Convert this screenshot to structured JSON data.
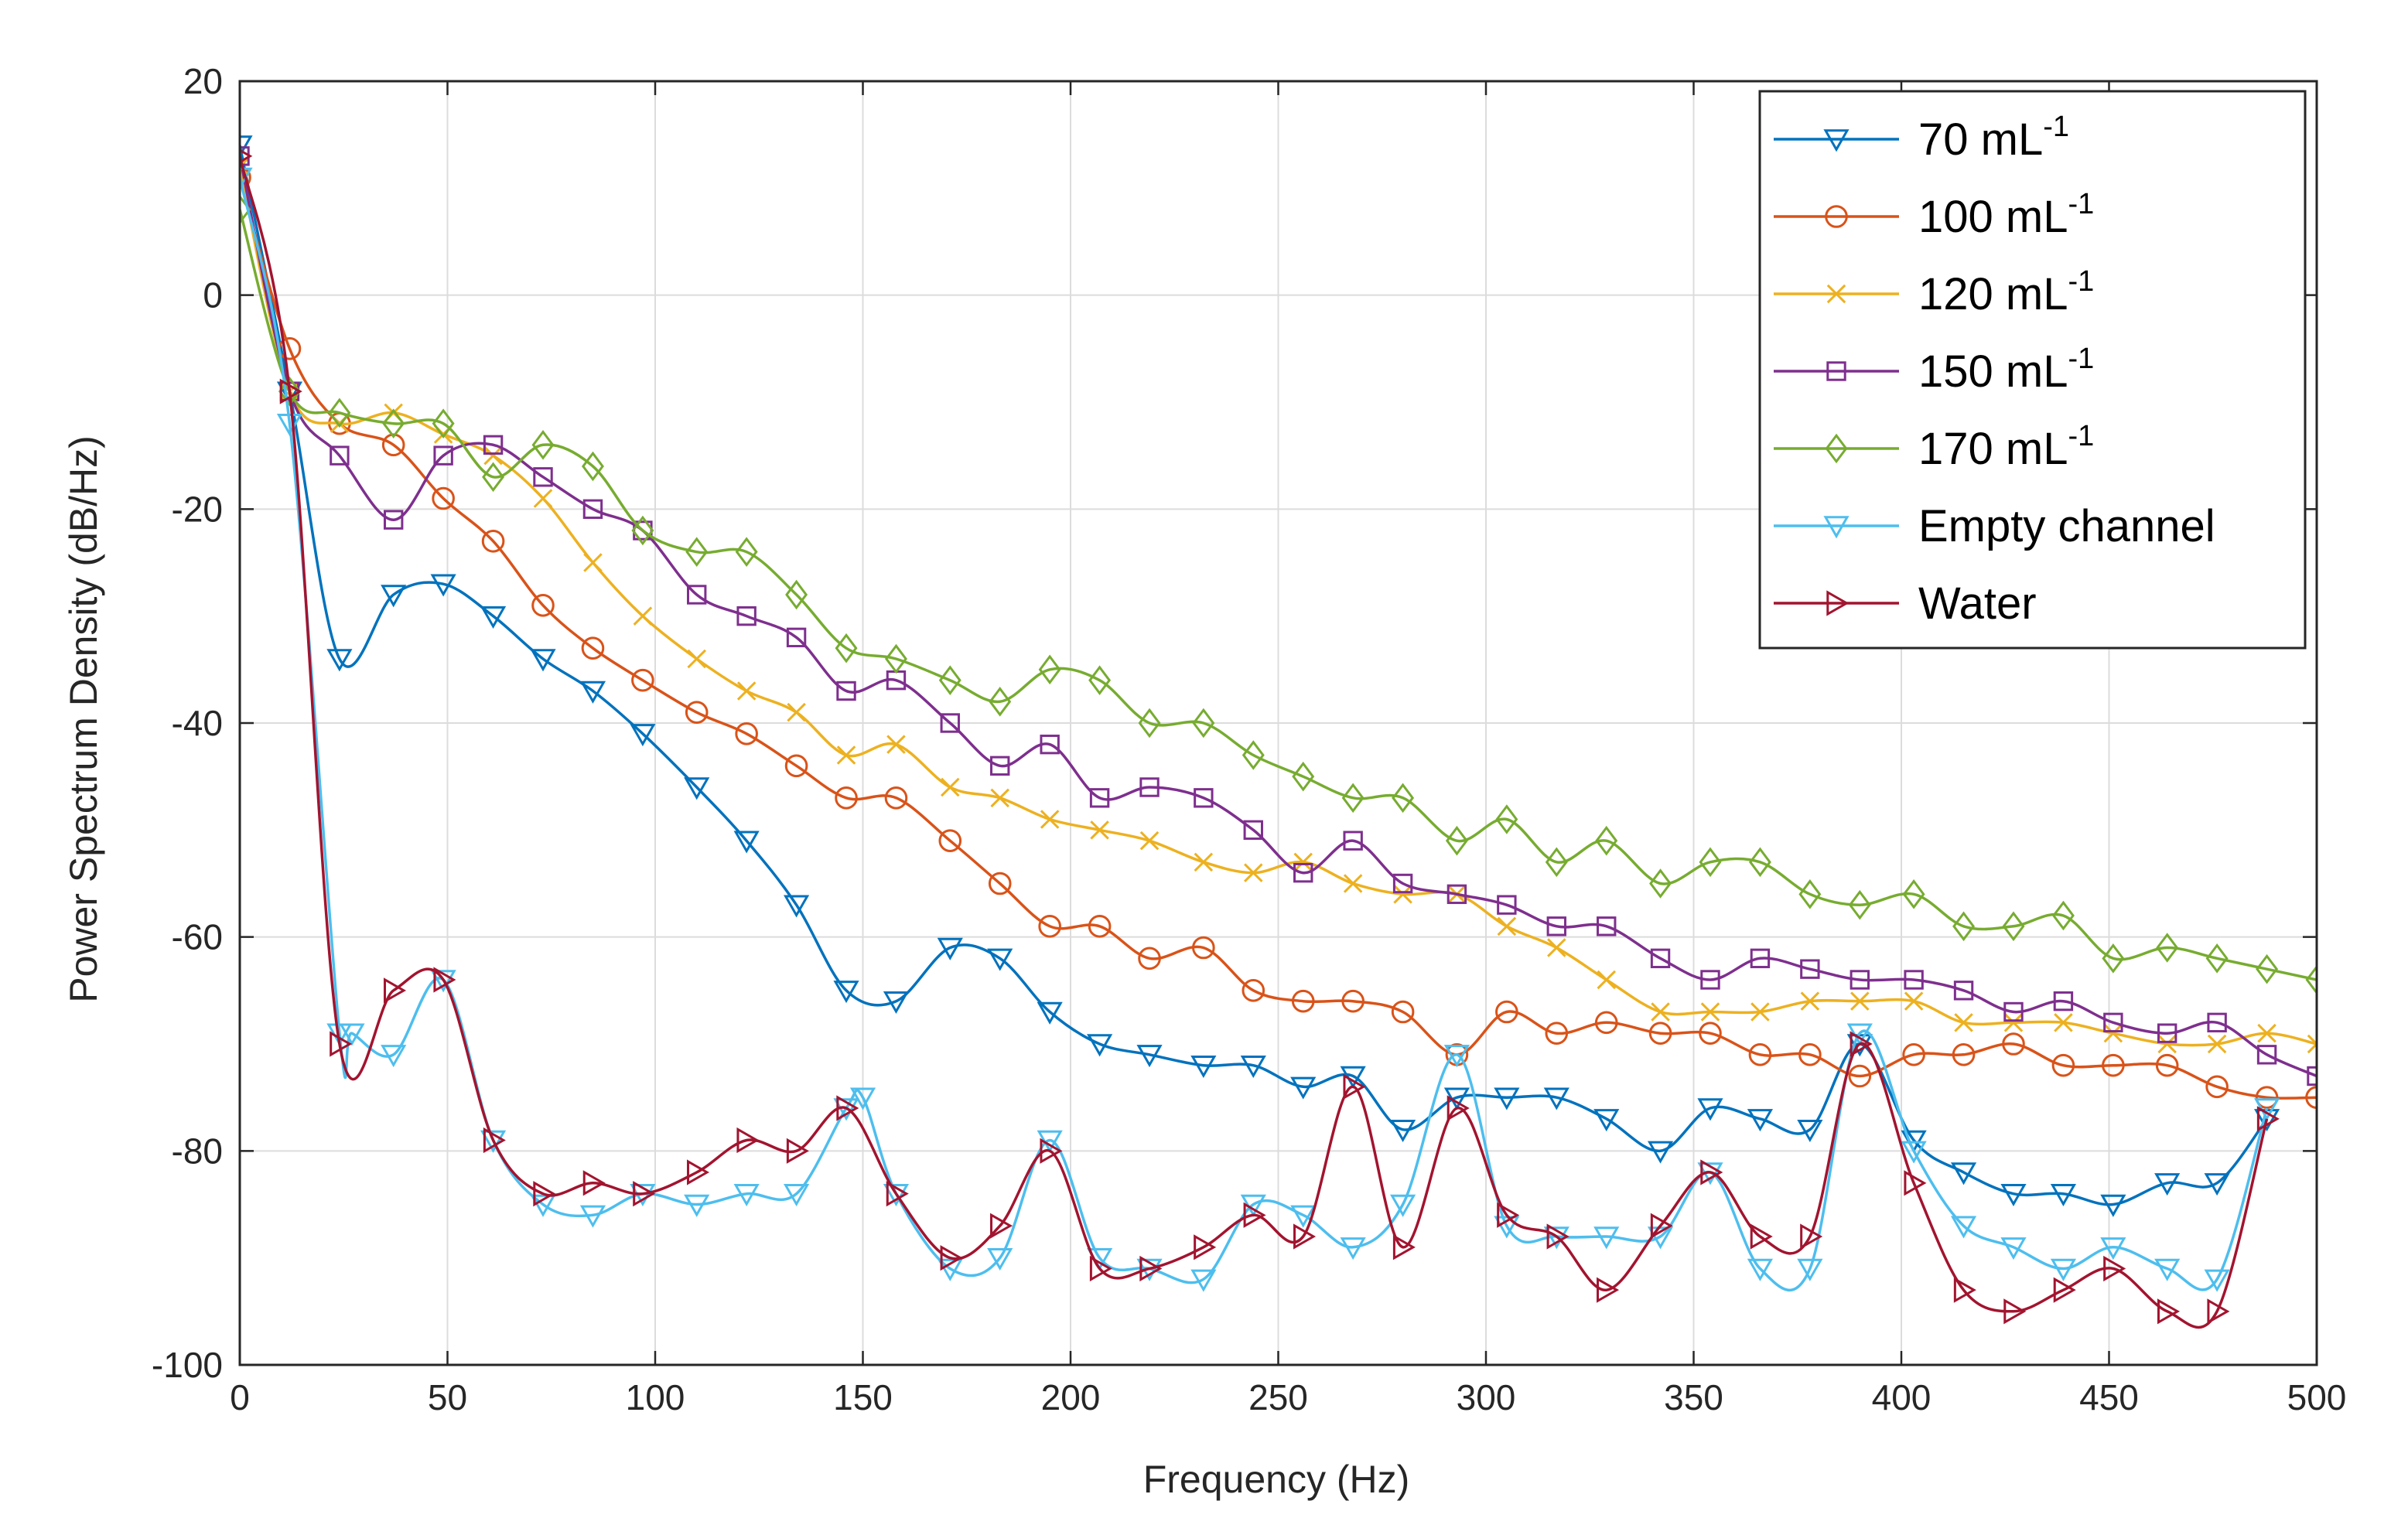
{
  "chart_data": {
    "type": "line",
    "xlabel": "Frequency (Hz)",
    "ylabel": "Power Spectrum Density (dB/Hz)",
    "xlim": [
      0,
      500
    ],
    "ylim": [
      -100,
      20
    ],
    "x_ticks": [
      "0",
      "50",
      "100",
      "150",
      "200",
      "250",
      "300",
      "350",
      "400",
      "450",
      "500"
    ],
    "y_ticks": [
      "20",
      "0",
      "-20",
      "-40",
      "-60",
      "-80",
      "-100"
    ],
    "grid": true,
    "legend_position": "top-right",
    "series": [
      {
        "name": "70 mL",
        "name_superscript": "-1",
        "color": "#0072BD",
        "marker": "triangle-down",
        "x": [
          0,
          12,
          24,
          37,
          49,
          61,
          73,
          85,
          97,
          110,
          122,
          134,
          146,
          158,
          171,
          183,
          195,
          207,
          219,
          232,
          244,
          256,
          268,
          280,
          293,
          305,
          317,
          329,
          342,
          354,
          366,
          378,
          390,
          403,
          415,
          427,
          439,
          451,
          464,
          476,
          488
        ],
        "y": [
          14,
          -9,
          -34,
          -28,
          -27,
          -30,
          -34,
          -37,
          -41,
          -46,
          -51,
          -57,
          -65,
          -66,
          -61,
          -62,
          -67,
          -70,
          -71,
          -72,
          -72,
          -74,
          -73,
          -78,
          -75,
          -75,
          -75,
          -77,
          -80,
          -76,
          -77,
          -78,
          -70,
          -79,
          -82,
          -84,
          -84,
          -85,
          -83,
          -83,
          -77
        ]
      },
      {
        "name": "100 mL",
        "name_superscript": "-1",
        "color": "#D95319",
        "marker": "circle",
        "x": [
          0,
          12,
          24,
          37,
          49,
          61,
          73,
          85,
          97,
          110,
          122,
          134,
          146,
          158,
          171,
          183,
          195,
          207,
          219,
          232,
          244,
          256,
          268,
          280,
          293,
          305,
          317,
          329,
          342,
          354,
          366,
          378,
          390,
          403,
          415,
          427,
          439,
          451,
          464,
          476,
          488,
          500
        ],
        "y": [
          11,
          -5,
          -12,
          -14,
          -19,
          -23,
          -29,
          -33,
          -36,
          -39,
          -41,
          -44,
          -47,
          -47,
          -51,
          -55,
          -59,
          -59,
          -62,
          -61,
          -65,
          -66,
          -66,
          -67,
          -71,
          -67,
          -69,
          -68,
          -69,
          -69,
          -71,
          -71,
          -73,
          -71,
          -71,
          -70,
          -72,
          -72,
          -72,
          -74,
          -75,
          -75
        ]
      },
      {
        "name": "120 mL",
        "name_superscript": "-1",
        "color": "#EDB120",
        "marker": "x",
        "x": [
          0,
          12,
          24,
          37,
          49,
          61,
          73,
          85,
          97,
          110,
          122,
          134,
          146,
          158,
          171,
          183,
          195,
          207,
          219,
          232,
          244,
          256,
          268,
          280,
          293,
          305,
          317,
          329,
          342,
          354,
          366,
          378,
          390,
          403,
          415,
          427,
          439,
          451,
          464,
          476,
          488,
          500
        ],
        "y": [
          12,
          -9,
          -12,
          -11,
          -13,
          -15,
          -19,
          -25,
          -30,
          -34,
          -37,
          -39,
          -43,
          -42,
          -46,
          -47,
          -49,
          -50,
          -51,
          -53,
          -54,
          -53,
          -55,
          -56,
          -56,
          -59,
          -61,
          -64,
          -67,
          -67,
          -67,
          -66,
          -66,
          -66,
          -68,
          -68,
          -68,
          -69,
          -70,
          -70,
          -69,
          -70
        ]
      },
      {
        "name": "150 mL",
        "name_superscript": "-1",
        "color": "#7E2F8E",
        "marker": "square",
        "x": [
          0,
          12,
          24,
          37,
          49,
          61,
          73,
          85,
          97,
          110,
          122,
          134,
          146,
          158,
          171,
          183,
          195,
          207,
          219,
          232,
          244,
          256,
          268,
          280,
          293,
          305,
          317,
          329,
          342,
          354,
          366,
          378,
          390,
          403,
          415,
          427,
          439,
          451,
          464,
          476,
          488,
          500
        ],
        "y": [
          13,
          -9,
          -15,
          -21,
          -15,
          -14,
          -17,
          -20,
          -22,
          -28,
          -30,
          -32,
          -37,
          -36,
          -40,
          -44,
          -42,
          -47,
          -46,
          -47,
          -50,
          -54,
          -51,
          -55,
          -56,
          -57,
          -59,
          -59,
          -62,
          -64,
          -62,
          -63,
          -64,
          -64,
          -65,
          -67,
          -66,
          -68,
          -69,
          -68,
          -71,
          -73
        ]
      },
      {
        "name": "170 mL",
        "name_superscript": "-1",
        "color": "#77AC30",
        "marker": "diamond",
        "x": [
          0,
          12,
          24,
          37,
          49,
          61,
          73,
          85,
          97,
          110,
          122,
          134,
          146,
          158,
          171,
          183,
          195,
          207,
          219,
          232,
          244,
          256,
          268,
          280,
          293,
          305,
          317,
          329,
          342,
          354,
          366,
          378,
          390,
          403,
          415,
          427,
          439,
          451,
          464,
          476,
          488,
          500
        ],
        "y": [
          8,
          -9,
          -11,
          -12,
          -12,
          -17,
          -14,
          -16,
          -22,
          -24,
          -24,
          -28,
          -33,
          -34,
          -36,
          -38,
          -35,
          -36,
          -40,
          -40,
          -43,
          -45,
          -47,
          -47,
          -51,
          -49,
          -53,
          -51,
          -55,
          -53,
          -53,
          -56,
          -57,
          -56,
          -59,
          -59,
          -58,
          -62,
          -61,
          -62,
          -63,
          -64
        ]
      },
      {
        "name": "Empty channel",
        "name_superscript": "",
        "color": "#4DBEEE",
        "marker": "triangle-down",
        "x": [
          0,
          12,
          24,
          27,
          37,
          49,
          61,
          73,
          85,
          97,
          110,
          122,
          134,
          146,
          150,
          158,
          171,
          183,
          195,
          207,
          219,
          232,
          244,
          256,
          268,
          280,
          293,
          305,
          317,
          329,
          342,
          354,
          366,
          378,
          390,
          403,
          415,
          427,
          439,
          451,
          464,
          476,
          488
        ],
        "y": [
          11,
          -12,
          -69,
          -69,
          -71,
          -64,
          -79,
          -85,
          -86,
          -84,
          -85,
          -84,
          -84,
          -76,
          -75,
          -84,
          -91,
          -90,
          -79,
          -90,
          -91,
          -92,
          -85,
          -86,
          -89,
          -85,
          -71,
          -87,
          -88,
          -88,
          -88,
          -82,
          -91,
          -91,
          -69,
          -80,
          -87,
          -89,
          -91,
          -89,
          -91,
          -92,
          -76
        ]
      },
      {
        "name": "Water",
        "name_superscript": "",
        "color": "#A2142F",
        "marker": "triangle-right",
        "x": [
          0,
          12,
          24,
          37,
          49,
          61,
          73,
          85,
          97,
          110,
          122,
          134,
          146,
          158,
          171,
          183,
          195,
          207,
          219,
          232,
          244,
          256,
          268,
          280,
          293,
          305,
          317,
          329,
          342,
          354,
          366,
          378,
          390,
          403,
          415,
          427,
          439,
          451,
          464,
          476,
          488
        ],
        "y": [
          13,
          -9,
          -70,
          -65,
          -64,
          -79,
          -84,
          -83,
          -84,
          -82,
          -79,
          -80,
          -76,
          -84,
          -90,
          -87,
          -80,
          -91,
          -91,
          -89,
          -86,
          -88,
          -74,
          -89,
          -76,
          -86,
          -88,
          -93,
          -87,
          -82,
          -88,
          -88,
          -70,
          -83,
          -93,
          -95,
          -93,
          -91,
          -95,
          -95,
          -77
        ]
      }
    ]
  }
}
